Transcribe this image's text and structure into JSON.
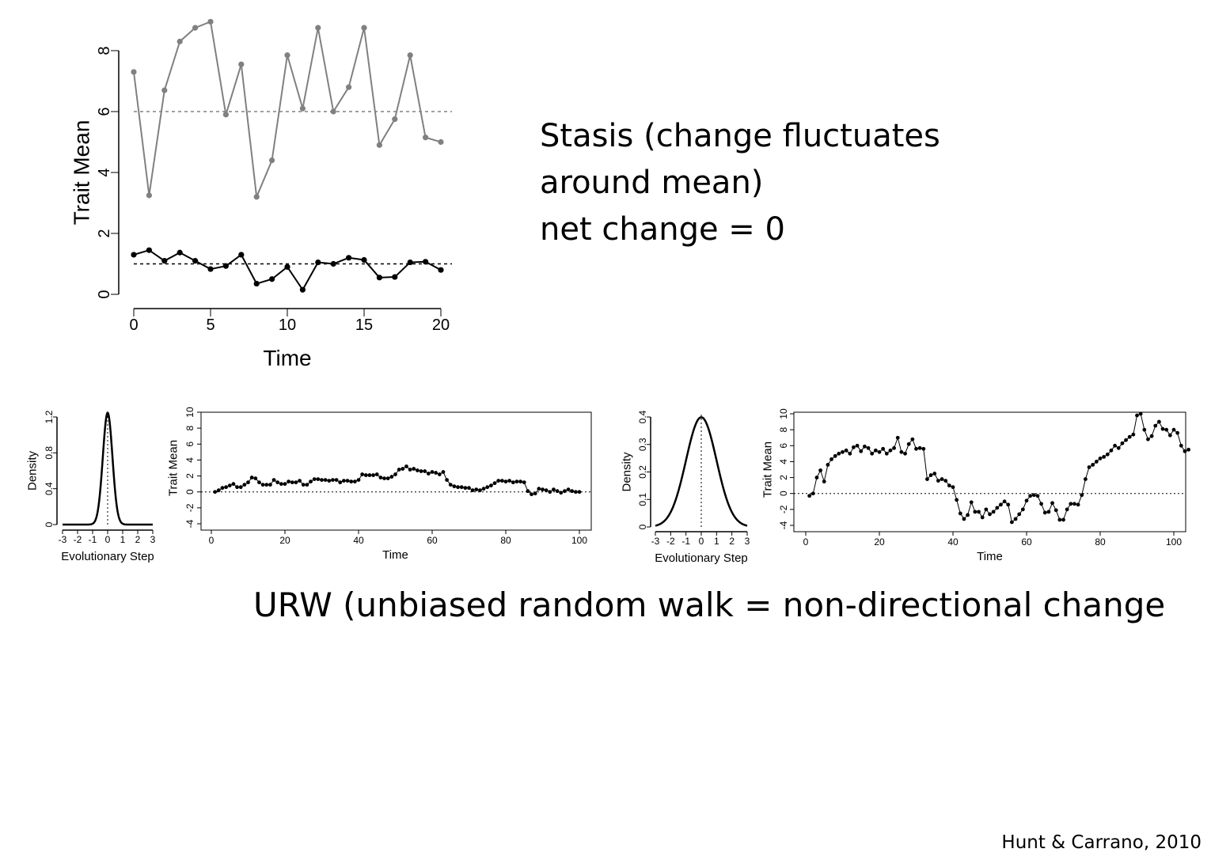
{
  "slide": {
    "stasis_text": {
      "line1": "Stasis (change fluctuates",
      "line2": "around mean)",
      "line3": "net change = 0"
    },
    "urw_caption": "URW (unbiased random walk = non-directional change",
    "citation": "Hunt & Carrano, 2010"
  },
  "colors": {
    "black": "#000000",
    "gray": "#808080"
  },
  "chart_data": [
    {
      "id": "stasis",
      "type": "line",
      "xlabel": "Time",
      "ylabel": "Trait Mean",
      "xlim": [
        0,
        20
      ],
      "ylim": [
        0,
        8
      ],
      "xticks": [
        0,
        5,
        10,
        15,
        20
      ],
      "yticks": [
        0,
        2,
        4,
        6,
        8
      ],
      "grid": false,
      "x": [
        0,
        1,
        2,
        3,
        4,
        5,
        6,
        7,
        8,
        9,
        10,
        11,
        12,
        13,
        14,
        15,
        16,
        17,
        18,
        19,
        20
      ],
      "series": [
        {
          "color": "#808080",
          "values": [
            7.3,
            3.25,
            6.7,
            8.3,
            8.75,
            8.95,
            5.9,
            7.55,
            3.2,
            4.4,
            7.85,
            6.1,
            8.75,
            6.0,
            6.8,
            8.75,
            4.9,
            5.75,
            7.85,
            5.15,
            5.0
          ],
          "reference_line": 6
        },
        {
          "color": "#000000",
          "values": [
            1.3,
            1.45,
            1.1,
            1.37,
            1.1,
            0.83,
            0.93,
            1.3,
            0.35,
            0.5,
            0.9,
            0.15,
            1.05,
            1.0,
            1.2,
            1.13,
            0.55,
            0.57,
            1.05,
            1.07,
            0.8
          ],
          "reference_line": 1
        }
      ]
    },
    {
      "id": "narrow-step-density",
      "type": "line",
      "xlabel": "Evolutionary Step",
      "ylabel": "Density",
      "xlim": [
        -3,
        3
      ],
      "ylim": [
        0,
        1.2
      ],
      "xticks": [
        -3,
        -2,
        -1,
        0,
        1,
        2,
        3
      ],
      "yticks": [
        0.0,
        0.4,
        0.8,
        1.2
      ],
      "distribution": {
        "kind": "normal",
        "mean": 0,
        "sd": 0.32
      },
      "reference_x": 0
    },
    {
      "id": "urw-small-variance",
      "type": "line",
      "xlabel": "Time",
      "ylabel": "Trait Mean",
      "xlim": [
        0,
        100
      ],
      "ylim": [
        -4,
        10
      ],
      "xticks": [
        0,
        20,
        40,
        60,
        80,
        100
      ],
      "yticks": [
        -4,
        -2,
        0,
        2,
        4,
        6,
        8,
        10
      ],
      "reference_y": 0,
      "x_start": 1,
      "values": [
        0.0,
        0.2,
        0.5,
        0.6,
        0.8,
        1.0,
        0.6,
        0.6,
        0.9,
        1.2,
        1.8,
        1.7,
        1.2,
        0.9,
        0.9,
        0.9,
        1.5,
        1.2,
        1.0,
        1.0,
        1.3,
        1.2,
        1.2,
        1.4,
        0.9,
        0.9,
        1.3,
        1.6,
        1.6,
        1.5,
        1.5,
        1.4,
        1.5,
        1.5,
        1.2,
        1.4,
        1.4,
        1.3,
        1.3,
        1.5,
        2.2,
        2.1,
        2.1,
        2.1,
        2.2,
        1.8,
        1.7,
        1.7,
        1.9,
        2.2,
        2.8,
        2.9,
        3.2,
        2.8,
        2.9,
        2.7,
        2.6,
        2.6,
        2.3,
        2.5,
        2.4,
        2.2,
        2.5,
        1.5,
        0.9,
        0.7,
        0.6,
        0.6,
        0.5,
        0.5,
        0.2,
        0.3,
        0.2,
        0.4,
        0.6,
        0.8,
        1.1,
        1.4,
        1.4,
        1.3,
        1.4,
        1.2,
        1.3,
        1.3,
        1.2,
        0.1,
        -0.3,
        -0.2,
        0.4,
        0.3,
        0.2,
        0.0,
        0.3,
        0.1,
        -0.1,
        0.1,
        0.3,
        0.1,
        0.0,
        0.0
      ]
    },
    {
      "id": "wide-step-density",
      "type": "line",
      "xlabel": "Evolutionary Step",
      "ylabel": "Density",
      "xlim": [
        -3,
        3
      ],
      "ylim": [
        0,
        0.4
      ],
      "xticks": [
        -3,
        -2,
        -1,
        0,
        1,
        2,
        3
      ],
      "yticks": [
        0.0,
        0.1,
        0.2,
        0.3,
        0.4
      ],
      "distribution": {
        "kind": "normal",
        "mean": 0,
        "sd": 1
      },
      "reference_x": 0
    },
    {
      "id": "urw-large-variance",
      "type": "line",
      "xlabel": "Time",
      "ylabel": "Trait Mean",
      "xlim": [
        0,
        100
      ],
      "ylim": [
        -4,
        10
      ],
      "xticks": [
        0,
        20,
        40,
        60,
        80,
        100
      ],
      "yticks": [
        -4,
        -2,
        0,
        2,
        4,
        6,
        8,
        10
      ],
      "reference_y": 0,
      "x_start": 1,
      "values": [
        -0.3,
        0.0,
        2.0,
        2.9,
        1.5,
        3.6,
        4.3,
        4.7,
        5.0,
        5.2,
        5.4,
        5.0,
        5.8,
        6.0,
        5.3,
        5.9,
        5.7,
        5.0,
        5.4,
        5.2,
        5.6,
        5.0,
        5.4,
        5.7,
        7.0,
        5.2,
        5.0,
        6.2,
        6.8,
        5.6,
        5.7,
        5.6,
        1.8,
        2.3,
        2.5,
        1.6,
        1.8,
        1.6,
        1.0,
        0.8,
        -0.8,
        -2.5,
        -3.2,
        -2.7,
        -1.1,
        -2.3,
        -2.3,
        -3.0,
        -2.0,
        -2.6,
        -2.3,
        -1.8,
        -1.4,
        -1.0,
        -1.4,
        -3.6,
        -3.2,
        -2.6,
        -2.0,
        -0.9,
        -0.3,
        -0.2,
        -0.3,
        -1.3,
        -2.4,
        -2.3,
        -1.2,
        -2.1,
        -3.3,
        -3.3,
        -2.0,
        -1.3,
        -1.3,
        -1.4,
        -0.2,
        1.8,
        3.3,
        3.6,
        4.0,
        4.4,
        4.6,
        4.9,
        5.4,
        6.0,
        5.7,
        6.3,
        6.7,
        7.1,
        7.4,
        9.8,
        10.0,
        8.0,
        6.8,
        7.2,
        8.5,
        9.0,
        8.1,
        8.0,
        7.3,
        8.0,
        7.6,
        6.0,
        5.3,
        5.5
      ]
    }
  ]
}
